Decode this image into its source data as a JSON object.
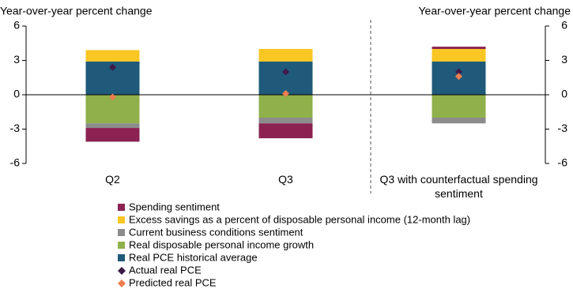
{
  "chart_data": {
    "type": "bar",
    "stacked": true,
    "y_axis_label": "Year-over-year percent change",
    "y2_axis_label": "Year-over-year percent change",
    "categories": [
      "Q2",
      "Q3",
      "Q3 with counterfactual spending sentiment"
    ],
    "series": [
      {
        "name": "Spending sentiment",
        "type": "bar",
        "color": "#8b2252",
        "values": [
          -1.2,
          -1.3,
          0.2
        ]
      },
      {
        "name": "Excess savings as a percent of disposable personal income (12-month lag)",
        "type": "bar",
        "color": "#f9c623",
        "values": [
          1.0,
          1.1,
          1.1
        ]
      },
      {
        "name": "Current business conditions sentiment",
        "type": "bar",
        "color": "#8c8c8c",
        "values": [
          -0.4,
          -0.5,
          -0.5
        ]
      },
      {
        "name": "Real disposable personal income growth",
        "type": "bar",
        "color": "#8fb04a",
        "values": [
          -2.5,
          -2.0,
          -2.0
        ]
      },
      {
        "name": "Real PCE historical average",
        "type": "bar",
        "color": "#1f5a7a",
        "values": [
          2.9,
          2.9,
          2.9
        ]
      },
      {
        "name": "Actual real PCE",
        "type": "scatter",
        "marker": "diamond",
        "color": "#3d1a4a",
        "values": [
          2.4,
          2.0,
          2.0
        ]
      },
      {
        "name": "Predicted real PCE",
        "type": "scatter",
        "marker": "diamond",
        "color": "#ed7d4f",
        "values": [
          -0.2,
          0.1,
          1.6
        ]
      }
    ],
    "ylim": [
      -6,
      6
    ],
    "yticks": [
      -6,
      -3,
      0,
      3,
      6
    ],
    "y2lim": [
      -6,
      6
    ],
    "y2ticks": [
      -6,
      -3,
      0,
      3,
      6
    ],
    "divider_after_category": 1
  }
}
